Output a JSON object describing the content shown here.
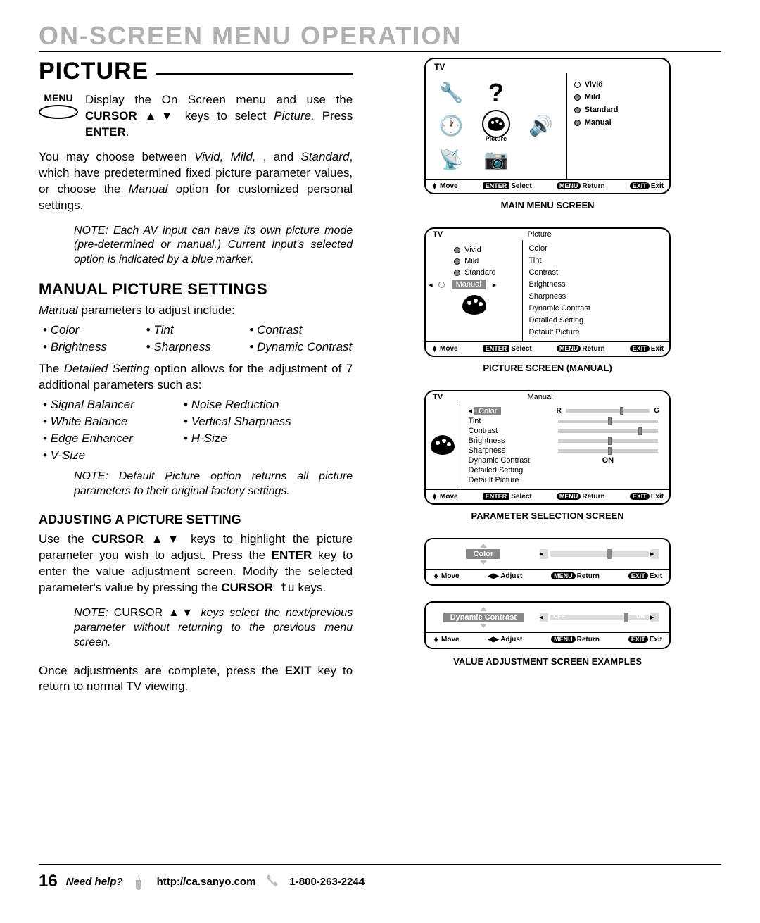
{
  "page": {
    "header": "ON-SCREEN MENU OPERATION",
    "sectionTitle": "PICTURE",
    "pageNumber": "16",
    "footer": {
      "help": "Need help?",
      "url": "http://ca.sanyo.com",
      "phone": "1-800-263-2244"
    }
  },
  "menuIntro": {
    "menuLabel": "MENU",
    "line1_a": "Display the On Screen menu and use the ",
    "line1_b": "CURSOR ▲▼",
    "line1_c": " keys to select ",
    "line1_d": "Picture.",
    "line1_e": " Press ",
    "line1_f": "ENTER",
    "line1_g": "."
  },
  "paragraph1": {
    "a": "You may choose between ",
    "b": "Vivid, Mild, ",
    "c": ", and ",
    "d": "Standard",
    "e": ", which have predetermined fixed picture parameter values, or choose the ",
    "f": "Manual",
    "g": " option for customized personal settings."
  },
  "note1": "NOTE: Each AV input can have its own picture mode (pre-determined or manual.) Current input's selected option is indicated by a blue marker.",
  "manualSection": {
    "heading": "MANUAL PICTURE SETTINGS",
    "intro_a": "Manual",
    "intro_b": " parameters to adjust include:",
    "params": [
      "Color",
      "Tint",
      "Contrast",
      "Brightness",
      "Sharpness",
      "Dynamic Contrast"
    ],
    "detail_a": "The ",
    "detail_b": "Detailed Setting",
    "detail_c": " option allows for the adjustment of 7 additional parameters such as:",
    "params2": [
      "Signal Balancer",
      "Noise Reduction",
      "White Balance",
      "Vertical Sharpness",
      "Edge Enhancer",
      "H-Size",
      "V-Size"
    ]
  },
  "note2": "NOTE: Default Picture option returns all picture parameters to their original factory settings.",
  "adjustSection": {
    "heading": "ADJUSTING A PICTURE SETTING",
    "p1_a": "Use the ",
    "p1_b": "CURSOR ▲▼",
    "p1_c": " keys to highlight the picture parameter you wish to adjust. Press the ",
    "p1_d": "ENTER",
    "p1_e": " key to enter the value adjustment screen. Modify the selected parameter's value by pressing the ",
    "p1_f": "CURSOR",
    "p1_g": " tu",
    "p1_h": " keys.",
    "note_a": "NOTE: ",
    "note_b": "CURSOR ▲▼",
    "note_c": " keys select the next/previous parameter without returning to the previous menu screen.",
    "p2_a": "Once adjustments are complete, press the ",
    "p2_b": "EXIT",
    "p2_c": " key to return to normal TV viewing."
  },
  "tv": {
    "tvLabel": "TV",
    "pictureLabel": "Picture",
    "options": [
      "Vivid",
      "Mild",
      "Standard",
      "Manual"
    ],
    "bottomBar": {
      "move": "Move",
      "enter": "ENTER",
      "select": "Select",
      "menu": "MENU",
      "return": "Return",
      "exit": "EXIT",
      "exitAction": "Exit"
    },
    "caption1": "MAIN MENU SCREEN",
    "screen2": {
      "leftTitle": "Picture",
      "leftItems": [
        "Vivid",
        "Mild",
        "Standard",
        "Manual"
      ],
      "highlightedIdx": 3,
      "rightItems": [
        "Color",
        "Tint",
        "Contrast",
        "Brightness",
        "Sharpness",
        "Dynamic Contrast",
        "Detailed Setting",
        "Default Picture"
      ]
    },
    "caption2": "PICTURE SCREEN (MANUAL)",
    "screen3": {
      "title": "Manual",
      "rows": [
        {
          "name": "Color",
          "thumb": 65,
          "prefix": "R",
          "suffix": "G",
          "hi": true
        },
        {
          "name": "Tint",
          "thumb": 50
        },
        {
          "name": "Contrast",
          "thumb": 80
        },
        {
          "name": "Brightness",
          "thumb": 50
        },
        {
          "name": "Sharpness",
          "thumb": 50
        },
        {
          "name": "Dynamic Contrast",
          "text": "ON"
        },
        {
          "name": "Detailed Setting"
        },
        {
          "name": "Default Picture"
        }
      ]
    },
    "caption3": "PARAMETER SELECTION SCREEN",
    "adj1": {
      "title": "Color",
      "thumb": 58
    },
    "adj2": {
      "title": "Dynamic Contrast",
      "thumb": 75,
      "left": "OFF",
      "right": "ON"
    },
    "adjBar": {
      "move": "Move",
      "adjust": "Adjust",
      "menu": "MENU",
      "return": "Return",
      "exit": "EXIT",
      "exitAction": "Exit"
    },
    "caption4": "VALUE ADJUSTMENT SCREEN EXAMPLES"
  },
  "colors": {
    "text": "#000000",
    "bg": "#ffffff",
    "grey": "#b0b0b0",
    "highlight": "#888888"
  }
}
